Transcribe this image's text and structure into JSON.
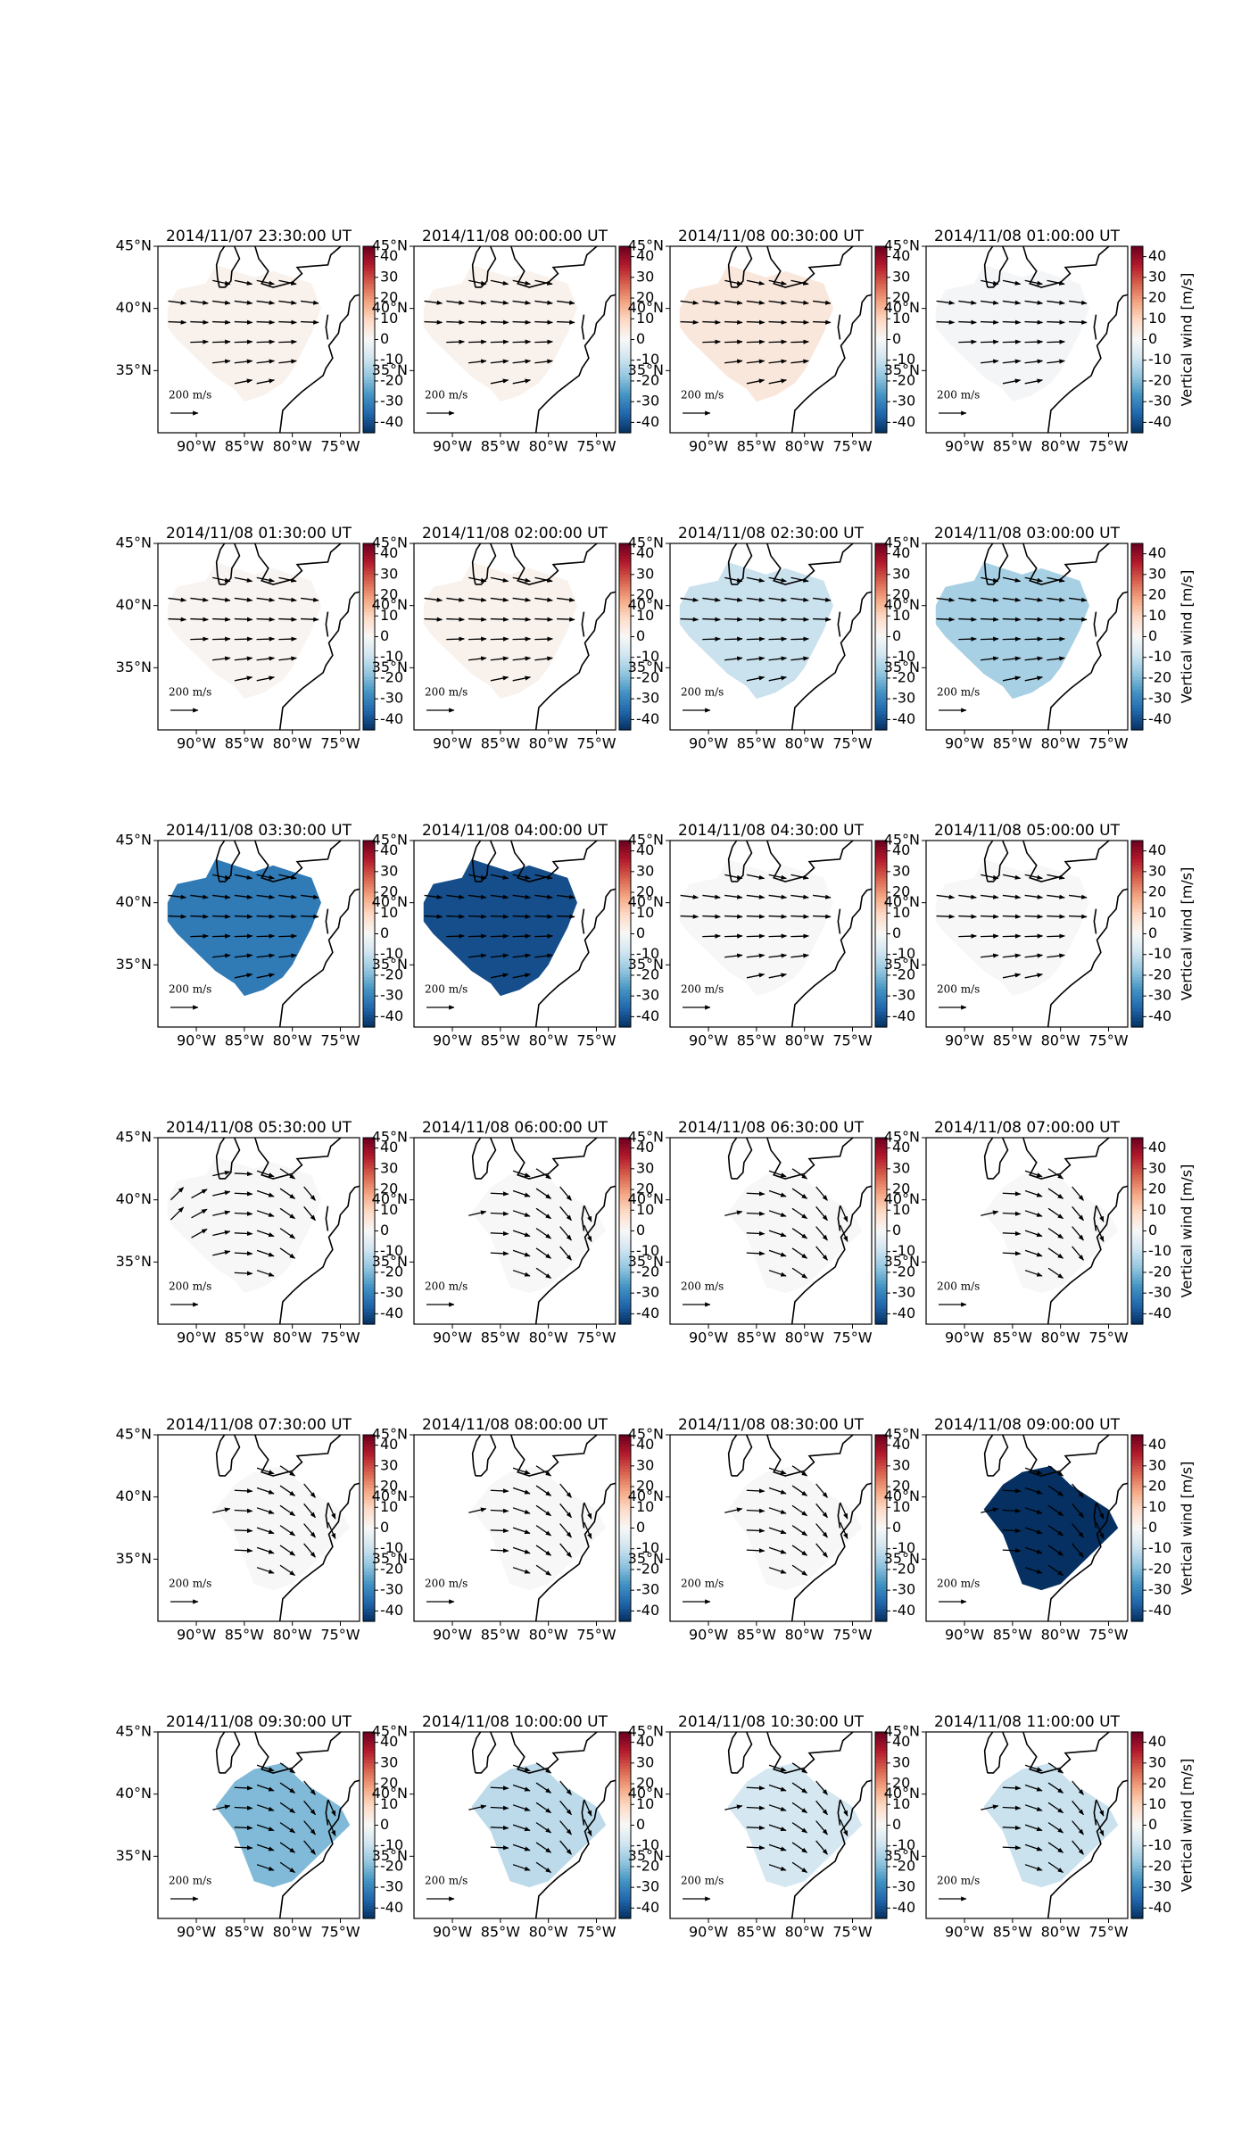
{
  "panels": [
    {
      "title": "2014/11/07 23:30:00 UT",
      "value": 2
    },
    {
      "title": "2014/11/08 00:00:00 UT",
      "value": 2
    },
    {
      "title": "2014/11/08 00:30:00 UT",
      "value": 5
    },
    {
      "title": "2014/11/08 01:00:00 UT",
      "value": -1
    },
    {
      "title": "2014/11/08 01:30:00 UT",
      "value": 1
    },
    {
      "title": "2014/11/08 02:00:00 UT",
      "value": 2
    },
    {
      "title": "2014/11/08 02:30:00 UT",
      "value": -10
    },
    {
      "title": "2014/11/08 03:00:00 UT",
      "value": -15
    },
    {
      "title": "2014/11/08 03:30:00 UT",
      "value": -32
    },
    {
      "title": "2014/11/08 04:00:00 UT",
      "value": -40
    },
    {
      "title": "2014/11/08 04:30:00 UT",
      "value": 0
    },
    {
      "title": "2014/11/08 05:00:00 UT",
      "value": 0
    },
    {
      "title": "2014/11/08 05:30:00 UT",
      "value": 0
    },
    {
      "title": "2014/11/08 06:00:00 UT",
      "value": 0
    },
    {
      "title": "2014/11/08 06:30:00 UT",
      "value": 0
    },
    {
      "title": "2014/11/08 07:00:00 UT",
      "value": 0
    },
    {
      "title": "2014/11/08 07:30:00 UT",
      "value": 0
    },
    {
      "title": "2014/11/08 08:00:00 UT",
      "value": 0
    },
    {
      "title": "2014/11/08 08:30:00 UT",
      "value": 0
    },
    {
      "title": "2014/11/08 09:00:00 UT",
      "value": -45
    },
    {
      "title": "2014/11/08 09:30:00 UT",
      "value": -20
    },
    {
      "title": "2014/11/08 10:00:00 UT",
      "value": -12
    },
    {
      "title": "2014/11/08 10:30:00 UT",
      "value": -8
    },
    {
      "title": "2014/11/08 11:00:00 UT",
      "value": -10
    }
  ],
  "map": {
    "xlim": [
      -94,
      -73
    ],
    "ylim": [
      30,
      45
    ],
    "lon_ticks": [
      {
        "value": -90,
        "label": "90°W"
      },
      {
        "value": -85,
        "label": "85°W"
      },
      {
        "value": -80,
        "label": "80°W"
      },
      {
        "value": -75,
        "label": "75°W"
      }
    ],
    "lat_ticks": [
      {
        "value": 45,
        "label": "45°N"
      },
      {
        "value": 40,
        "label": "40°N"
      },
      {
        "value": 35,
        "label": "35°N"
      }
    ],
    "reference_label": "200 m/s"
  },
  "colorbar": {
    "label": "Vertical wind [m/s]",
    "lim": [
      -45,
      45
    ],
    "colormap": "RdBu_r",
    "ticks": [
      40,
      30,
      20,
      10,
      0,
      -10,
      -20,
      -30,
      -40
    ]
  }
}
